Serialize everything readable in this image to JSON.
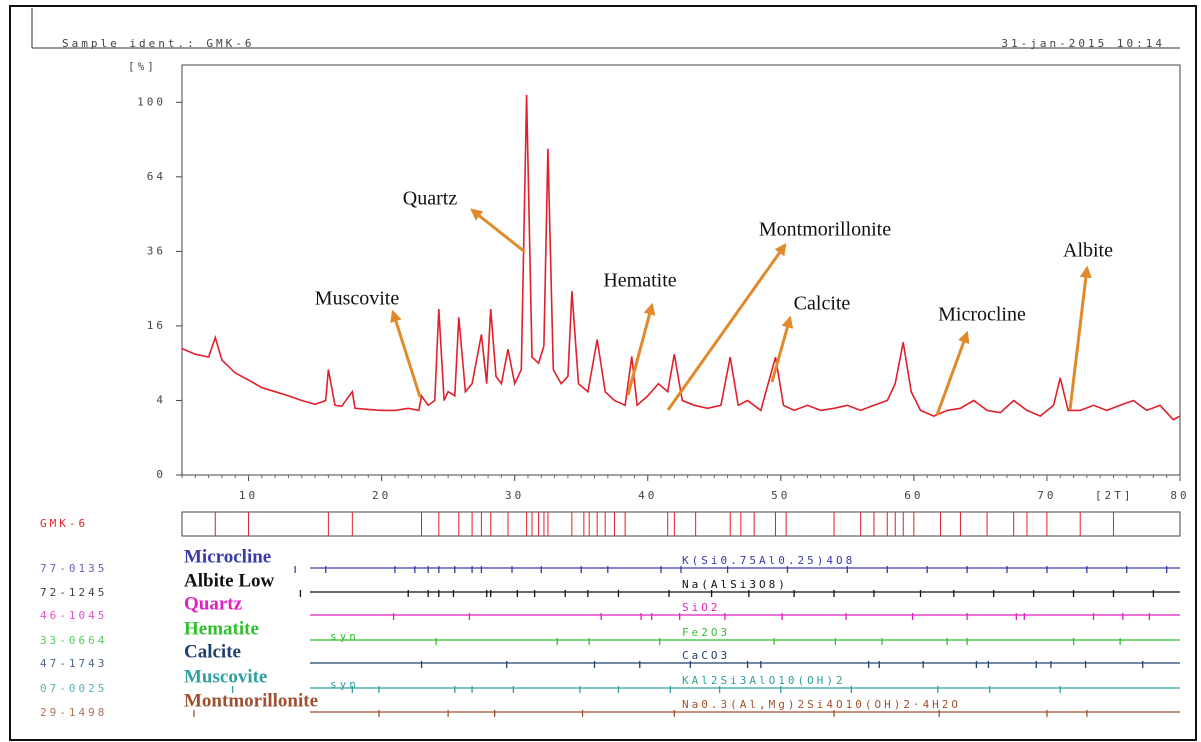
{
  "chart_data": {
    "type": "line",
    "title": "Sample ident.: GMK-6",
    "date": "31-jan-2015 10:14",
    "y_unit": "[%]",
    "x_unit": "[2T]",
    "y_scale": "sqrt",
    "xlim": [
      5,
      80
    ],
    "ylim": [
      0,
      121
    ],
    "xticks": [
      10,
      20,
      30,
      40,
      50,
      60,
      70,
      80
    ],
    "yticks": [
      0,
      4,
      16,
      36,
      64,
      100
    ],
    "series": [
      {
        "name": "GMK-6",
        "color": "#e0202a",
        "x": [
          5,
          6,
          7,
          7.5,
          8,
          9,
          10,
          11,
          12,
          13,
          14,
          15,
          15.8,
          16,
          16.5,
          17,
          17.8,
          18,
          19,
          20,
          21,
          22,
          22.8,
          23,
          23.5,
          24,
          24.3,
          24.7,
          25,
          25.5,
          25.8,
          26.3,
          26.8,
          27.5,
          27.9,
          28.2,
          28.6,
          29,
          29.5,
          30,
          30.5,
          30.9,
          31.3,
          31.8,
          32.2,
          32.5,
          32.9,
          33.5,
          34,
          34.3,
          34.8,
          35.5,
          36.2,
          36.8,
          37.5,
          38.3,
          38.8,
          39.2,
          40,
          40.8,
          41.5,
          42,
          42.6,
          43.5,
          44.5,
          45.5,
          46.2,
          46.8,
          47.5,
          48.5,
          49.6,
          50.2,
          51,
          52,
          53,
          54,
          55,
          56,
          57,
          58,
          58.6,
          59.2,
          59.8,
          60.5,
          61.5,
          62.5,
          63.5,
          64.5,
          65.5,
          66.5,
          67.5,
          68.5,
          69.5,
          70.5,
          71,
          71.6,
          72.5,
          73.5,
          74.5,
          75.5,
          76.5,
          77.5,
          78.5,
          79.5,
          80
        ],
        "values": [
          11.5,
          10.5,
          10,
          13.6,
          9.5,
          7.5,
          6.5,
          5.5,
          5,
          4.5,
          4,
          3.6,
          4,
          8,
          3.5,
          3.4,
          5,
          3.2,
          3.1,
          3,
          3,
          3.2,
          3,
          4.5,
          3.5,
          4,
          19.8,
          4,
          5,
          4.5,
          17.9,
          5,
          6,
          14.2,
          6,
          19.8,
          7,
          6,
          11.4,
          6,
          8,
          104,
          10,
          9,
          12,
          76.7,
          8,
          6,
          7,
          24.3,
          6,
          5,
          13.2,
          5,
          4,
          3.5,
          10.1,
          3.5,
          4.5,
          6,
          5,
          10.5,
          4,
          3.5,
          3.2,
          3.5,
          10,
          3.5,
          4,
          3,
          10,
          3.5,
          3,
          3.5,
          3,
          3.2,
          3.5,
          3,
          3.5,
          4,
          6,
          12.7,
          5,
          3,
          2.5,
          3,
          3.2,
          4,
          3,
          2.8,
          4,
          3,
          2.5,
          3.5,
          6.8,
          3,
          3,
          3.5,
          3,
          3.5,
          4,
          3,
          3.5,
          2.2,
          2.5
        ],
        "peaks": [
          7.5,
          10,
          16,
          17.8,
          23,
          24.3,
          25.8,
          26.8,
          27.5,
          28.2,
          29.5,
          30.9,
          31.3,
          31.8,
          32.2,
          32.5,
          34.3,
          35.2,
          35.6,
          36.2,
          36.8,
          37.5,
          38.3,
          41.5,
          42,
          43.6,
          46.2,
          47,
          48,
          49.6,
          50.4,
          54,
          56,
          57,
          58,
          58.6,
          59.2,
          60,
          62,
          63.5,
          65.5,
          67.5,
          68.5,
          70,
          72.5,
          75
        ]
      }
    ],
    "phases": [
      {
        "code": "77-0135",
        "name": "Microcline",
        "formula": "K(Si0.75Al0.25)4O8",
        "color": "#3a3aa8",
        "peaks": [
          13.5,
          15.8,
          21,
          22.5,
          23.5,
          24.3,
          25.5,
          26.8,
          27.5,
          29.8,
          32,
          35,
          37,
          41,
          42.5,
          46,
          50.5,
          55,
          58,
          61,
          64,
          67,
          70,
          73,
          76,
          79
        ]
      },
      {
        "code": "72-1245",
        "name": "Albite Low",
        "formula": "Na(AlSi3O8)",
        "color": "#111111",
        "peaks": [
          13.9,
          22,
          23.5,
          24.3,
          25.4,
          27.9,
          28.2,
          30.2,
          31.5,
          33.8,
          35.5,
          37.8,
          41.6,
          44.8,
          47.6,
          51,
          54,
          57,
          60.5,
          63,
          66,
          69,
          72,
          75,
          78
        ]
      },
      {
        "code": "46-1045",
        "name": "Quartz",
        "formula": "SiO2",
        "color": "#e020c0",
        "peaks": [
          20.9,
          26.6,
          36.5,
          39.5,
          40.3,
          42.4,
          45.8,
          50.1,
          54.9,
          59.9,
          64,
          67.7,
          68.3,
          73.5,
          75.7,
          77.7
        ]
      },
      {
        "code": "33-0664",
        "name": "Hematite",
        "suffix": "syn",
        "formula": "Fe2O3",
        "color": "#30c030",
        "peaks": [
          24.1,
          33.2,
          35.6,
          40.9,
          49.5,
          54.1,
          57.6,
          62.5,
          64,
          72,
          75.5
        ]
      },
      {
        "code": "47-1743",
        "name": "Calcite",
        "formula": "CaCO3",
        "color": "#204070",
        "peaks": [
          23,
          29.4,
          36,
          39.4,
          43.2,
          47.5,
          48.5,
          56.6,
          57.4,
          60.7,
          64.7,
          65.6,
          69.2,
          70.3,
          72.9,
          77.2
        ]
      },
      {
        "code": "07-0025",
        "name": "Muscovite",
        "suffix": "syn",
        "formula": "KAl2Si3AlO10(OH)2",
        "color": "#30a0a0",
        "peaks": [
          8.8,
          17.8,
          19.8,
          25.5,
          26.8,
          29.9,
          34.9,
          37.8,
          41.7,
          45.4,
          50,
          55.3,
          61.8,
          65.7,
          71
        ]
      },
      {
        "code": "29-1498",
        "name": "Montmorillonite",
        "formula": "Na0.3(Al,Mg)2Si4O10(OH)2·4H2O",
        "color": "#a05030",
        "peaks": [
          5.9,
          19.8,
          25,
          28.5,
          35.1,
          42,
          54,
          61.9,
          70,
          73
        ]
      }
    ],
    "annotations": [
      "Quartz",
      "Muscovite",
      "Hematite",
      "Montmorillonite",
      "Calcite",
      "Microcline",
      "Albite"
    ]
  }
}
